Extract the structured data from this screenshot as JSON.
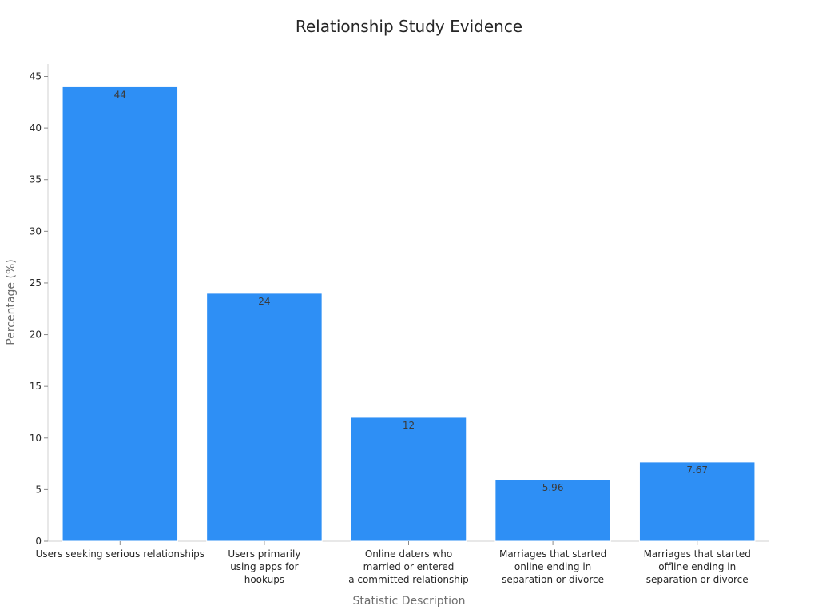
{
  "chart_data": {
    "type": "bar",
    "title": "Relationship Study Evidence",
    "xlabel": "Statistic Description",
    "ylabel": "Percentage (%)",
    "ylim": [
      0,
      46.2
    ],
    "yticks": [
      0,
      5,
      10,
      15,
      20,
      25,
      30,
      35,
      40,
      45
    ],
    "categories": [
      [
        "Users seeking serious relationships"
      ],
      [
        "Users primarily",
        "using apps for",
        "hookups"
      ],
      [
        "Online daters who",
        "married or entered",
        "a committed relationship"
      ],
      [
        "Marriages that started",
        "online ending in",
        "separation or divorce"
      ],
      [
        "Marriages that started",
        "offline ending in",
        "separation or divorce"
      ]
    ],
    "values": [
      44,
      24,
      12,
      5.96,
      7.67
    ],
    "data_labels": [
      "44",
      "24",
      "12",
      "5.96",
      "7.67"
    ],
    "bar_color": "#2e8ff5",
    "grid": false,
    "legend": "none"
  }
}
